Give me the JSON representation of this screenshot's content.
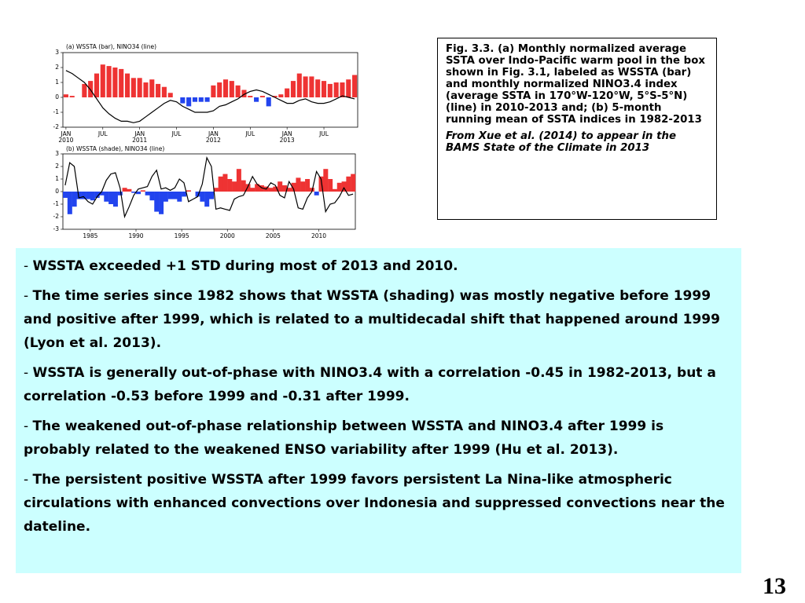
{
  "chart_data": [
    {
      "type": "bar",
      "title": "(a) WSSTA (bar), NINO34 (line)",
      "categories": [
        "JAN",
        null,
        null,
        null,
        null,
        null,
        "JUL",
        null,
        null,
        null,
        null,
        null,
        "JAN",
        null,
        null,
        null,
        null,
        null,
        "JUL",
        null,
        null,
        null,
        null,
        null,
        "JAN",
        null,
        null,
        null,
        null,
        null,
        "JUL",
        null,
        null,
        null,
        null,
        null,
        "JAN",
        null,
        null,
        null,
        null,
        null,
        "JUL",
        null,
        null,
        null,
        null,
        null
      ],
      "category_years": [
        "2010",
        null,
        null,
        null,
        null,
        null,
        null,
        null,
        null,
        null,
        null,
        null,
        "2011",
        null,
        null,
        null,
        null,
        null,
        null,
        null,
        null,
        null,
        null,
        null,
        "2012",
        null,
        null,
        null,
        null,
        null,
        null,
        null,
        null,
        null,
        null,
        null,
        "2013",
        null,
        null,
        null,
        null,
        null,
        null,
        null,
        null,
        null,
        null,
        null
      ],
      "series": [
        {
          "positive_color": "#ee3333",
          "negative_color": "#2244ee",
          "values": [
            0.2,
            0.1,
            0.0,
            0.9,
            1.1,
            1.6,
            2.2,
            2.1,
            2.0,
            1.9,
            1.6,
            1.3,
            1.3,
            1.0,
            1.2,
            0.9,
            0.7,
            0.3,
            0.0,
            -0.4,
            -0.6,
            -0.3,
            -0.3,
            -0.3,
            0.8,
            1.0,
            1.2,
            1.1,
            0.8,
            0.5,
            0.1,
            -0.3,
            0.1,
            -0.6,
            0.1,
            0.2,
            0.6,
            1.1,
            1.6,
            1.4,
            1.4,
            1.2,
            1.1,
            0.9,
            1.0,
            1.0,
            1.2,
            1.5
          ]
        },
        {
          "color": "#000000",
          "values": [
            1.8,
            1.6,
            1.3,
            1.0,
            0.5,
            -0.1,
            -0.7,
            -1.1,
            -1.4,
            -1.6,
            -1.6,
            -1.7,
            -1.6,
            -1.3,
            -1.0,
            -0.7,
            -0.4,
            -0.2,
            -0.3,
            -0.6,
            -0.8,
            -1.0,
            -1.0,
            -1.0,
            -0.9,
            -0.6,
            -0.5,
            -0.3,
            -0.1,
            0.2,
            0.4,
            0.5,
            0.4,
            0.2,
            0.0,
            -0.2,
            -0.4,
            -0.4,
            -0.2,
            -0.1,
            -0.3,
            -0.4,
            -0.4,
            -0.3,
            -0.1,
            0.1,
            0.0,
            -0.1
          ]
        }
      ],
      "ylim": [
        -2,
        3
      ],
      "yticks": [
        -2,
        -1,
        0,
        1,
        2,
        3
      ]
    },
    {
      "type": "area",
      "title": "(b) WSSTA (shade), NINO34 (line)",
      "x": [
        1982,
        1982.5,
        1983,
        1983.5,
        1984,
        1984.5,
        1985,
        1985.5,
        1986,
        1986.5,
        1987,
        1987.5,
        1988,
        1988.5,
        1989,
        1989.5,
        1990,
        1990.5,
        1991,
        1991.5,
        1992,
        1992.5,
        1993,
        1993.5,
        1994,
        1994.5,
        1995,
        1995.5,
        1996,
        1996.5,
        1997,
        1997.5,
        1998,
        1998.5,
        1999,
        1999.5,
        2000,
        2000.5,
        2001,
        2001.5,
        2002,
        2002.5,
        2003,
        2003.5,
        2004,
        2004.5,
        2005,
        2005.5,
        2006,
        2006.5,
        2007,
        2007.5,
        2008,
        2008.5,
        2009,
        2009.5,
        2010,
        2010.5,
        2011,
        2011.5,
        2012,
        2012.5,
        2013,
        2013.5
      ],
      "series": [
        {
          "positive_color": "#ee3333",
          "negative_color": "#2244ee",
          "values": [
            -0.5,
            -1.8,
            -1.2,
            -0.6,
            -0.6,
            -0.6,
            -0.7,
            -0.5,
            -0.3,
            -0.8,
            -1.0,
            -1.2,
            -0.3,
            0.3,
            0.2,
            -0.1,
            -0.2,
            0.1,
            -0.3,
            -0.7,
            -1.6,
            -1.8,
            -0.8,
            -0.6,
            -0.6,
            -0.8,
            -0.4,
            0.1,
            0.0,
            -0.4,
            -0.8,
            -1.2,
            -0.6,
            0.3,
            1.2,
            1.4,
            1.0,
            0.8,
            1.8,
            0.9,
            0.6,
            0.3,
            0.6,
            0.5,
            0.4,
            0.3,
            0.4,
            0.8,
            0.5,
            0.3,
            0.7,
            1.1,
            0.8,
            1.0,
            0.3,
            -0.3,
            1.2,
            1.8,
            1.0,
            0.2,
            0.7,
            0.8,
            1.2,
            1.4
          ]
        },
        {
          "color": "#000000",
          "values": [
            0.5,
            2.3,
            2.0,
            -0.5,
            -0.4,
            -0.8,
            -1.0,
            -0.4,
            0.0,
            0.9,
            1.4,
            1.5,
            0.3,
            -2.0,
            -1.2,
            -0.3,
            0.2,
            0.3,
            0.4,
            1.2,
            1.7,
            0.2,
            0.3,
            0.1,
            0.3,
            1.0,
            0.7,
            -0.8,
            -0.6,
            -0.4,
            0.6,
            2.7,
            2.0,
            -1.4,
            -1.3,
            -1.4,
            -1.5,
            -0.6,
            -0.4,
            -0.3,
            0.4,
            1.2,
            0.6,
            0.3,
            0.2,
            0.7,
            0.5,
            -0.3,
            -0.5,
            0.8,
            0.2,
            -1.3,
            -1.4,
            -0.5,
            0.0,
            1.6,
            1.0,
            -1.6,
            -1.0,
            -0.9,
            -0.4,
            0.3,
            -0.3,
            -0.2
          ]
        }
      ],
      "xlim": [
        1982,
        2014
      ],
      "xticks": [
        1985,
        1990,
        1995,
        2000,
        2005,
        2010
      ],
      "ylim": [
        -3,
        3
      ],
      "yticks": [
        -3,
        -2,
        -1,
        0,
        1,
        2,
        3
      ]
    }
  ],
  "caption": {
    "text": "Fig. 3.3. (a) Monthly normalized average SSTA  over Indo-Pacific warm pool in the box shown in Fig. 3.1, labeled as WSSTA (bar) and monthly normalized NINO3.4 index (average SSTA in 170°W-120°W, 5°S-5°N) (line) in 2010-2013 and; (b) 5-month running mean of SSTA indices in 1982-2013",
    "source": "From Xue et al. (2014) to appear in the BAMS State of the Climate in 2013"
  },
  "bullets": [
    {
      "marker": "-",
      "text": "WSSTA exceeded +1 STD during most of 2013 and 2010."
    },
    {
      "marker": "-",
      "text": "The time series since 1982 shows that WSSTA (shading) was mostly negative before 1999 and positive after 1999, which is related to a multidecadal shift that happened around 1999 (Lyon et al. 2013)."
    },
    {
      "marker": "-",
      "text": "WSSTA is generally out-of-phase with NINO3.4 with a correlation -0.45 in 1982-2013, but a correlation -0.53 before 1999 and -0.31 after 1999."
    },
    {
      "marker": "-",
      "text": "The weakened out-of-phase relationship between WSSTA and NINO3.4 after 1999 is probably related to the weakened ENSO variability after 1999 (Hu et al. 2013)."
    },
    {
      "marker": "-",
      "text": "The persistent positive WSSTA after 1999 favors persistent La Nina-like atmospheric circulations with enhanced convections over Indonesia and suppressed convections near the dateline."
    }
  ],
  "page_number": "13"
}
